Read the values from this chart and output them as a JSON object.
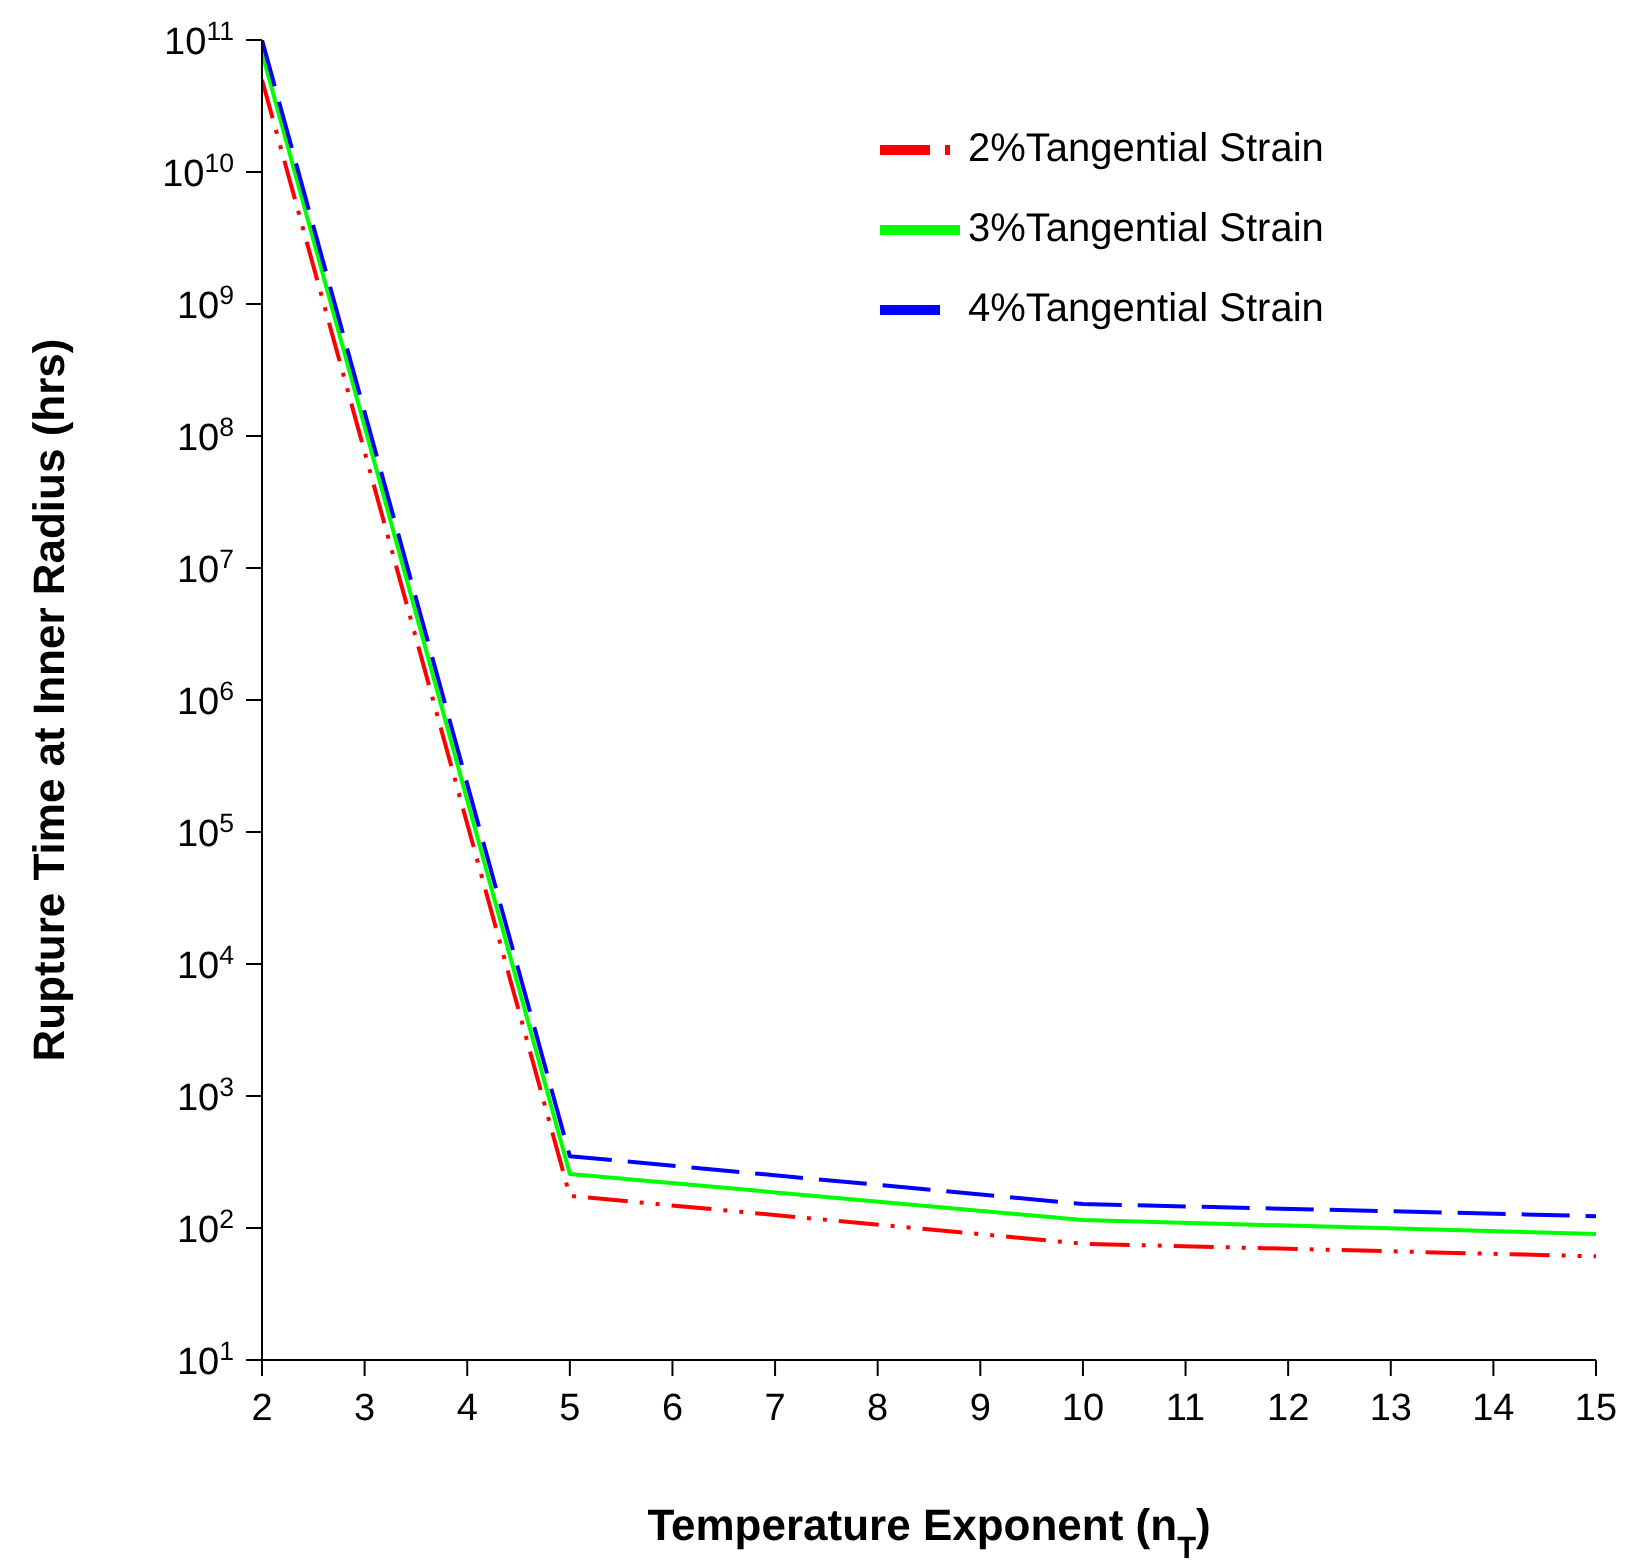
{
  "chart_data": {
    "type": "line",
    "xlabel": "Temperature Exponent (n$_{T}$)",
    "ylabel": "Rupture Time at Inner Radius (hrs)",
    "x": [
      2,
      5,
      10,
      15
    ],
    "series": [
      {
        "name": "2%Tangential Strain",
        "color": "#ff0000",
        "line_style": "dashdot",
        "values": [
          50000000000,
          175,
          76,
          61
        ]
      },
      {
        "name": "3%Tangential Strain",
        "color": "#00ff00",
        "line_style": "solid",
        "values": [
          80000000000,
          257,
          115,
          90
        ]
      },
      {
        "name": "4%Tangential Strain",
        "color": "#0000ff",
        "line_style": "dashed",
        "values": [
          100000000000,
          350,
          152,
          123
        ]
      }
    ],
    "log": "y",
    "xlim": [
      2,
      15
    ],
    "xticks": [
      2,
      3,
      4,
      5,
      6,
      7,
      8,
      9,
      10,
      11,
      12,
      13,
      14,
      15
    ],
    "ylim": [
      10,
      100000000000
    ],
    "yticks": [
      {
        "value": 10,
        "label": "10$^{1}$"
      },
      {
        "value": 100,
        "label": "10$^{2}$"
      },
      {
        "value": 1000,
        "label": "10$^{3}$"
      },
      {
        "value": 10000,
        "label": "10$^{4}$"
      },
      {
        "value": 100000,
        "label": "10$^{5}$"
      },
      {
        "value": 1000000,
        "label": "10$^{6}$"
      },
      {
        "value": 10000000,
        "label": "10$^{7}$"
      },
      {
        "value": 100000000,
        "label": "10$^{8}$"
      },
      {
        "value": 1000000000,
        "label": "10$^{9}$"
      },
      {
        "value": 10000000000,
        "label": "10$^{10}$"
      },
      {
        "value": 100000000000,
        "label": "10$^{11}$"
      }
    ],
    "legend": "top right",
    "grid": false,
    "marker": "none"
  }
}
